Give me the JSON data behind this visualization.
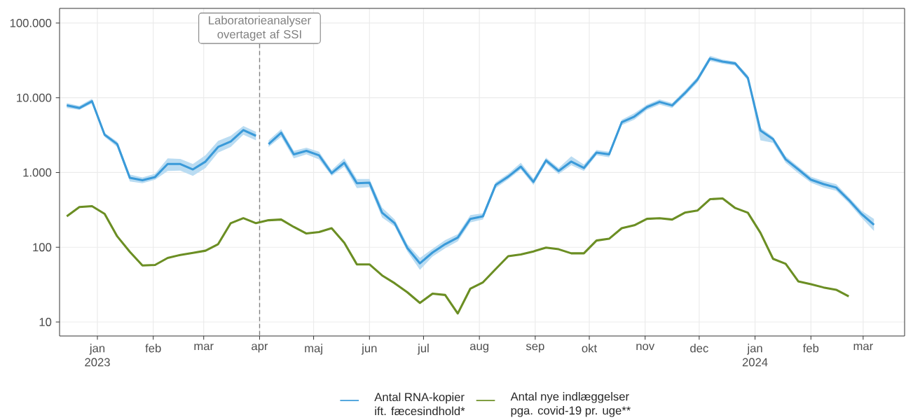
{
  "chart_data": {
    "type": "line",
    "log": "y",
    "grid": true,
    "legend": "bottom",
    "line_style": "solid",
    "xlim": [
      "2022-12-11",
      "2024-03-24"
    ],
    "ylim": [
      6.5,
      157000
    ],
    "xticks": [
      {
        "value": "2023-01-01",
        "label": "jan 2023"
      },
      {
        "value": "2023-02-01",
        "label": "feb"
      },
      {
        "value": "2023-03-01",
        "label": "mar"
      },
      {
        "value": "2023-04-01",
        "label": "apr"
      },
      {
        "value": "2023-05-01",
        "label": "maj"
      },
      {
        "value": "2023-06-01",
        "label": "jun"
      },
      {
        "value": "2023-07-01",
        "label": "jul"
      },
      {
        "value": "2023-08-01",
        "label": "aug"
      },
      {
        "value": "2023-09-01",
        "label": "sep"
      },
      {
        "value": "2023-10-01",
        "label": "okt"
      },
      {
        "value": "2023-11-01",
        "label": "nov"
      },
      {
        "value": "2023-12-01",
        "label": "dec"
      },
      {
        "value": "2024-01-01",
        "label": "jan 2024"
      },
      {
        "value": "2024-02-01",
        "label": "feb"
      },
      {
        "value": "2024-03-01",
        "label": "mar"
      }
    ],
    "yticks": [
      10,
      100,
      {
        "value": 1000,
        "label": "1.000"
      },
      {
        "value": 10000,
        "label": "10.000"
      },
      {
        "value": 100000,
        "label": "100.000"
      }
    ],
    "series": [
      {
        "name": "Antal RNA-kopier ift. fæcesindhold*",
        "color": "#3a9ad9",
        "x": [
          "2022-12-15",
          "2022-12-22",
          "2022-12-29",
          "2023-01-05",
          "2023-01-12",
          "2023-01-19",
          "2023-01-26",
          "2023-02-02",
          "2023-02-09",
          "2023-02-16",
          "2023-02-23",
          "2023-03-02",
          "2023-03-09",
          "2023-03-16",
          "2023-03-23",
          "2023-03-30"
        ],
        "values": [
          7900,
          7300,
          9000,
          3200,
          2400,
          850,
          790,
          870,
          1300,
          1300,
          1100,
          1400,
          2200,
          2600,
          3700,
          3100
        ],
        "lower": [
          7300,
          6900,
          8400,
          3000,
          2200,
          760,
          720,
          800,
          1050,
          1060,
          900,
          1150,
          1850,
          2200,
          3200,
          2700
        ],
        "upper": [
          8500,
          7800,
          9700,
          3400,
          2600,
          940,
          860,
          960,
          1550,
          1520,
          1300,
          1700,
          2650,
          3100,
          4200,
          3500
        ]
      },
      {
        "color": "#3a9ad9",
        "x": [
          "2023-04-06",
          "2023-04-13",
          "2023-04-20",
          "2023-04-27",
          "2023-05-04",
          "2023-05-11",
          "2023-05-18",
          "2023-05-25",
          "2023-06-01",
          "2023-06-08",
          "2023-06-15",
          "2023-06-22",
          "2023-06-29",
          "2023-07-06",
          "2023-07-13",
          "2023-07-20",
          "2023-07-27",
          "2023-08-03",
          "2023-08-10",
          "2023-08-17",
          "2023-08-24",
          "2023-08-31",
          "2023-09-07",
          "2023-09-14",
          "2023-09-21",
          "2023-09-28",
          "2023-10-05",
          "2023-10-12",
          "2023-10-19",
          "2023-10-26",
          "2023-11-02",
          "2023-11-09",
          "2023-11-16",
          "2023-11-23",
          "2023-11-30",
          "2023-12-07",
          "2023-12-14",
          "2023-12-21",
          "2023-12-28",
          "2024-01-04",
          "2024-01-11",
          "2024-01-18",
          "2024-01-25",
          "2024-02-01",
          "2024-02-08",
          "2024-02-15",
          "2024-02-22",
          "2024-02-29",
          "2024-03-07"
        ],
        "values": [
          2400,
          3400,
          1750,
          1950,
          1700,
          980,
          1350,
          720,
          730,
          290,
          210,
          98,
          61,
          85,
          110,
          135,
          240,
          260,
          680,
          880,
          1200,
          750,
          1450,
          1050,
          1400,
          1150,
          1850,
          1750,
          4700,
          5600,
          7500,
          8800,
          7900,
          11500,
          17500,
          33500,
          30500,
          28800,
          18500,
          3650,
          2800,
          1500,
          1100,
          800,
          700,
          630,
          430,
          280,
          200
        ],
        "lower": [
          2200,
          3000,
          1550,
          1750,
          1500,
          900,
          1200,
          620,
          640,
          250,
          190,
          88,
          50,
          75,
          97,
          120,
          215,
          235,
          620,
          810,
          1100,
          680,
          1330,
          950,
          1250,
          1050,
          1700,
          1600,
          4300,
          5100,
          6900,
          8100,
          7300,
          10600,
          16000,
          31000,
          28500,
          27000,
          17000,
          2700,
          2500,
          1350,
          980,
          730,
          630,
          570,
          390,
          250,
          165
        ],
        "upper": [
          2700,
          3800,
          1950,
          2150,
          1900,
          1080,
          1550,
          820,
          820,
          340,
          235,
          110,
          72,
          95,
          125,
          150,
          270,
          285,
          740,
          960,
          1350,
          830,
          1580,
          1150,
          1650,
          1280,
          2000,
          1900,
          5100,
          6200,
          8100,
          9500,
          8500,
          12500,
          19000,
          36500,
          32500,
          30500,
          20000,
          4000,
          3000,
          1650,
          1200,
          880,
          770,
          700,
          470,
          310,
          240
        ]
      },
      {
        "name": "Antal nye indlæggelser pga. covid-19 pr. uge**",
        "color": "#6b8e23",
        "x": [
          "2022-12-15",
          "2022-12-22",
          "2022-12-29",
          "2023-01-05",
          "2023-01-12",
          "2023-01-19",
          "2023-01-26",
          "2023-02-02",
          "2023-02-09",
          "2023-02-16",
          "2023-02-23",
          "2023-03-02",
          "2023-03-09",
          "2023-03-16",
          "2023-03-23",
          "2023-03-30",
          "2023-04-06",
          "2023-04-13",
          "2023-04-20",
          "2023-04-27",
          "2023-05-04",
          "2023-05-11",
          "2023-05-18",
          "2023-05-25",
          "2023-06-01",
          "2023-06-08",
          "2023-06-15",
          "2023-06-22",
          "2023-06-29",
          "2023-07-06",
          "2023-07-13",
          "2023-07-20",
          "2023-07-27",
          "2023-08-03",
          "2023-08-10",
          "2023-08-17",
          "2023-08-24",
          "2023-08-31",
          "2023-09-07",
          "2023-09-14",
          "2023-09-21",
          "2023-09-28",
          "2023-10-05",
          "2023-10-12",
          "2023-10-19",
          "2023-10-26",
          "2023-11-02",
          "2023-11-09",
          "2023-11-16",
          "2023-11-23",
          "2023-11-30",
          "2023-12-07",
          "2023-12-14",
          "2023-12-21",
          "2023-12-28",
          "2024-01-04",
          "2024-01-11",
          "2024-01-18",
          "2024-01-25",
          "2024-02-01",
          "2024-02-08",
          "2024-02-15",
          "2024-02-22"
        ],
        "values": [
          260,
          345,
          355,
          280,
          140,
          87,
          57,
          58,
          72,
          79,
          84,
          90,
          110,
          210,
          245,
          210,
          230,
          235,
          187,
          153,
          160,
          180,
          115,
          59,
          59,
          42,
          33,
          25,
          18,
          24,
          23,
          13,
          28,
          34,
          51,
          76,
          80,
          88,
          99,
          94,
          83,
          83,
          123,
          130,
          180,
          197,
          240,
          245,
          235,
          290,
          310,
          440,
          450,
          335,
          290,
          156,
          70,
          60,
          35,
          32,
          29,
          27,
          22
        ]
      }
    ],
    "ref_lines": [
      {
        "axis": "x",
        "value": "2023-04-01",
        "label": "Laboratorieanalyser overtaget af SSI",
        "color": "#7f7f7f",
        "line_style": "dashed"
      }
    ]
  }
}
